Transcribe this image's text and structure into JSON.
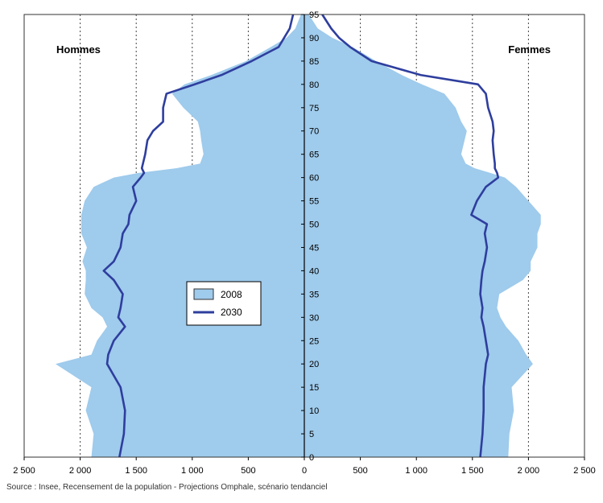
{
  "chart_data": {
    "type": "area",
    "title": "",
    "xlabel": "",
    "ylabel": "",
    "side_labels": {
      "left": "Hommes",
      "right": "Femmes"
    },
    "source": "Source : Insee, Recensement de la population - Projections Omphale, scénario tendanciel",
    "xlim": [
      -2500,
      2500
    ],
    "ylim": [
      0,
      95
    ],
    "x_ticks": [
      "2 500",
      "2 000",
      "1 500",
      "1 000",
      "500",
      "0",
      "500",
      "1 000",
      "1 500",
      "2 000",
      "2 500"
    ],
    "y_ticks": [
      "0",
      "5",
      "10",
      "15",
      "20",
      "25",
      "30",
      "35",
      "40",
      "45",
      "50",
      "55",
      "60",
      "65",
      "70",
      "75",
      "80",
      "85",
      "90",
      "95"
    ],
    "grid": "vertical-dotted",
    "legend_position": "left-center",
    "legend": [
      {
        "label": "2008",
        "color": "#9fcbec",
        "kind": "fill"
      },
      {
        "label": "2030",
        "color": "#2e3e9e",
        "kind": "line"
      }
    ],
    "ages": [
      0,
      5,
      10,
      15,
      20,
      22,
      25,
      28,
      30,
      32,
      35,
      38,
      40,
      42,
      45,
      48,
      50,
      52,
      55,
      58,
      60,
      61,
      62,
      63,
      65,
      68,
      70,
      72,
      75,
      78,
      80,
      82,
      85,
      88,
      90,
      92,
      95
    ],
    "series": [
      {
        "name": "2008",
        "men": [
          1900,
          1880,
          1950,
          1900,
          2220,
          1900,
          1850,
          1760,
          1800,
          1900,
          1960,
          1950,
          1950,
          1980,
          1940,
          1990,
          1990,
          1990,
          1960,
          1880,
          1700,
          1480,
          1140,
          930,
          900,
          920,
          930,
          950,
          1080,
          1180,
          1070,
          830,
          520,
          300,
          160,
          80,
          30
        ],
        "women": [
          1820,
          1830,
          1870,
          1850,
          2040,
          1980,
          1910,
          1800,
          1750,
          1720,
          1740,
          1950,
          2020,
          2020,
          2080,
          2080,
          2110,
          2110,
          2000,
          1890,
          1790,
          1660,
          1520,
          1440,
          1400,
          1430,
          1450,
          1400,
          1350,
          1250,
          1050,
          870,
          640,
          430,
          250,
          120,
          40
        ]
      },
      {
        "name": "2030",
        "men": [
          1650,
          1610,
          1600,
          1640,
          1760,
          1750,
          1700,
          1600,
          1660,
          1640,
          1620,
          1700,
          1790,
          1700,
          1640,
          1620,
          1570,
          1560,
          1500,
          1530,
          1460,
          1430,
          1450,
          1440,
          1420,
          1400,
          1350,
          1260,
          1260,
          1230,
          980,
          740,
          470,
          230,
          180,
          130,
          100
        ],
        "women": [
          1570,
          1590,
          1600,
          1600,
          1620,
          1640,
          1620,
          1600,
          1580,
          1590,
          1570,
          1580,
          1590,
          1610,
          1630,
          1610,
          1630,
          1490,
          1540,
          1620,
          1730,
          1720,
          1700,
          1700,
          1690,
          1680,
          1690,
          1680,
          1640,
          1620,
          1550,
          1040,
          600,
          410,
          310,
          240,
          160
        ]
      }
    ]
  }
}
